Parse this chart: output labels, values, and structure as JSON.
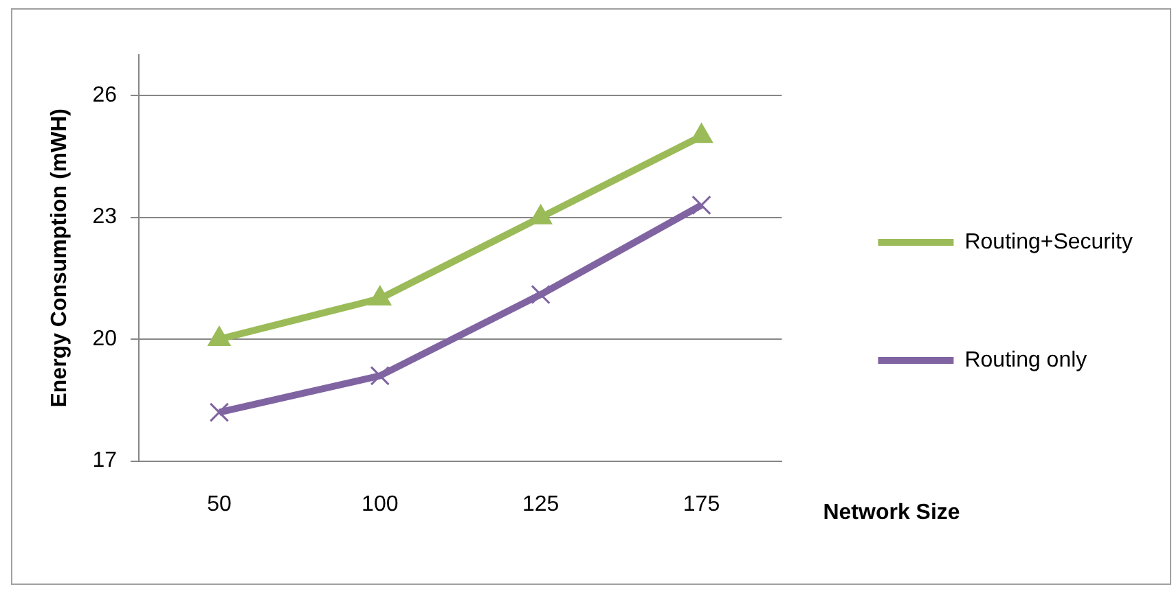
{
  "chart_data": {
    "type": "line",
    "xlabel": "Network Size",
    "ylabel": "Energy Consumption (mWH)",
    "categories": [
      "50",
      "100",
      "125",
      "175"
    ],
    "series": [
      {
        "name": "Routing+Security",
        "color": "#9bbb59",
        "marker": "triangle",
        "values": [
          20,
          21,
          23,
          25
        ]
      },
      {
        "name": "Routing only",
        "color": "#8064a2",
        "marker": "cross",
        "values": [
          18.2,
          19.1,
          21.1,
          23.3
        ]
      }
    ],
    "ylim": [
      17,
      27
    ],
    "yticks": [
      17,
      20,
      23,
      26
    ],
    "grid": "y",
    "legend": "right"
  }
}
